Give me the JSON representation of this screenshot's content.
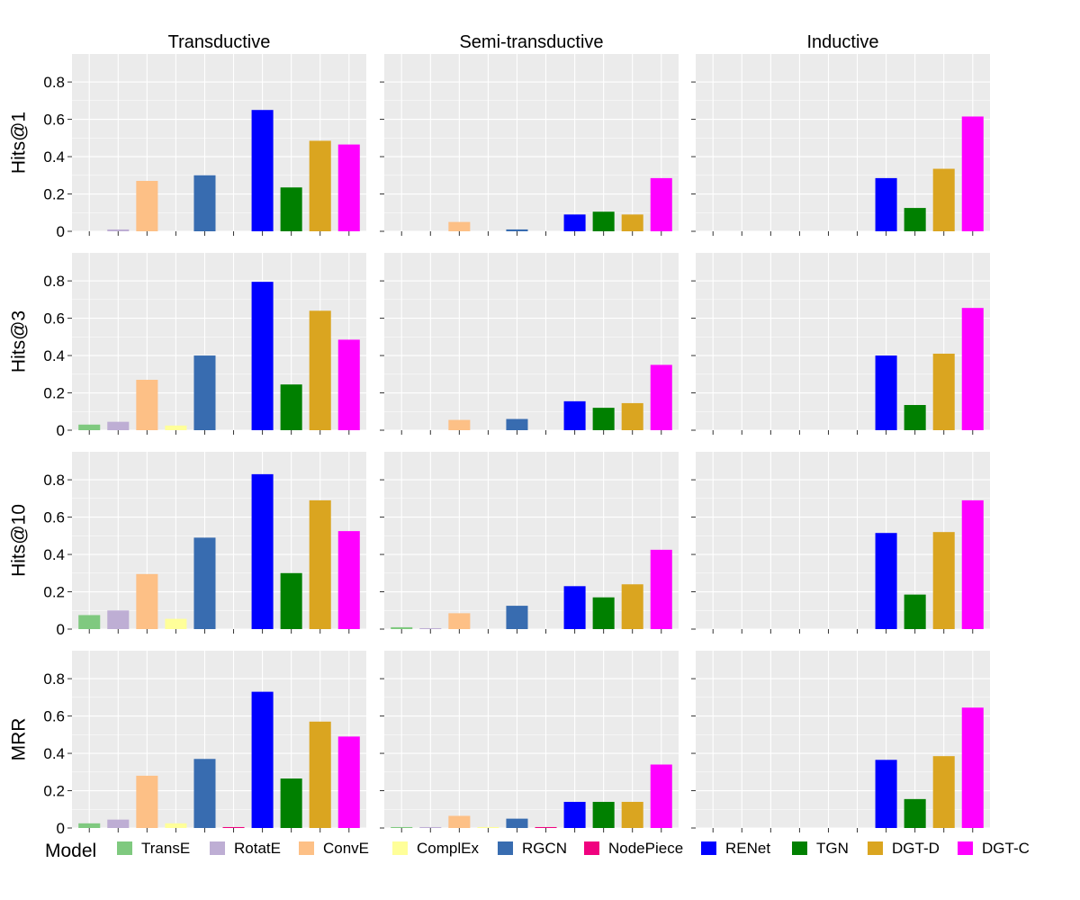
{
  "chart_data": {
    "type": "bar",
    "columns": [
      "Transductive",
      "Semi-transductive",
      "Inductive"
    ],
    "rows": [
      "Hits@1",
      "Hits@3",
      "Hits@10",
      "MRR"
    ],
    "models": [
      "TransE",
      "RotatE",
      "ConvE",
      "ComplEx",
      "RGCN",
      "NodePiece",
      "RENet",
      "TGN",
      "DGT-D",
      "DGT-C"
    ],
    "colors": [
      "#7fc97f",
      "#beaed4",
      "#fdc086",
      "#ffff99",
      "#386cb0",
      "#f0027f",
      "#0000ff",
      "#008000",
      "#daa520",
      "#ff00ff"
    ],
    "ylim": [
      0,
      0.95
    ],
    "yticks": [
      0,
      0.2,
      0.4,
      0.6,
      0.8
    ],
    "ytick_labels": [
      "0",
      "0.2",
      "0.4",
      "0.6",
      "0.8"
    ],
    "legend": {
      "title": "Model",
      "position": "bottom"
    },
    "values": {
      "Hits@1": {
        "Transductive": [
          0.0,
          0.01,
          0.27,
          0.0,
          0.3,
          0.0,
          0.65,
          0.235,
          0.485,
          0.465
        ],
        "Semi-transductive": [
          0.0,
          0.0,
          0.05,
          0.0,
          0.01,
          0.0,
          0.09,
          0.105,
          0.09,
          0.285
        ],
        "Inductive": [
          0.0,
          0.0,
          0.0,
          0.0,
          0.0,
          0.0,
          0.285,
          0.125,
          0.335,
          0.615
        ]
      },
      "Hits@3": {
        "Transductive": [
          0.03,
          0.045,
          0.27,
          0.025,
          0.4,
          0.0,
          0.795,
          0.245,
          0.64,
          0.485
        ],
        "Semi-transductive": [
          0.0,
          0.0,
          0.055,
          0.0,
          0.06,
          0.0,
          0.155,
          0.12,
          0.145,
          0.35
        ],
        "Inductive": [
          0.0,
          0.0,
          0.0,
          0.0,
          0.0,
          0.0,
          0.4,
          0.135,
          0.41,
          0.655
        ]
      },
      "Hits@10": {
        "Transductive": [
          0.075,
          0.1,
          0.295,
          0.055,
          0.49,
          0.0,
          0.83,
          0.3,
          0.69,
          0.525
        ],
        "Semi-transductive": [
          0.01,
          0.005,
          0.085,
          0.0,
          0.125,
          0.0,
          0.23,
          0.17,
          0.24,
          0.425
        ],
        "Inductive": [
          0.0,
          0.0,
          0.0,
          0.0,
          0.0,
          0.0,
          0.515,
          0.185,
          0.52,
          0.69
        ]
      },
      "MRR": {
        "Transductive": [
          0.025,
          0.045,
          0.28,
          0.025,
          0.37,
          0.005,
          0.73,
          0.265,
          0.57,
          0.49
        ],
        "Semi-transductive": [
          0.005,
          0.005,
          0.065,
          0.005,
          0.05,
          0.005,
          0.14,
          0.14,
          0.14,
          0.34
        ],
        "Inductive": [
          0.0,
          0.0,
          0.0,
          0.0,
          0.0,
          0.0,
          0.365,
          0.155,
          0.385,
          0.645
        ]
      }
    }
  }
}
